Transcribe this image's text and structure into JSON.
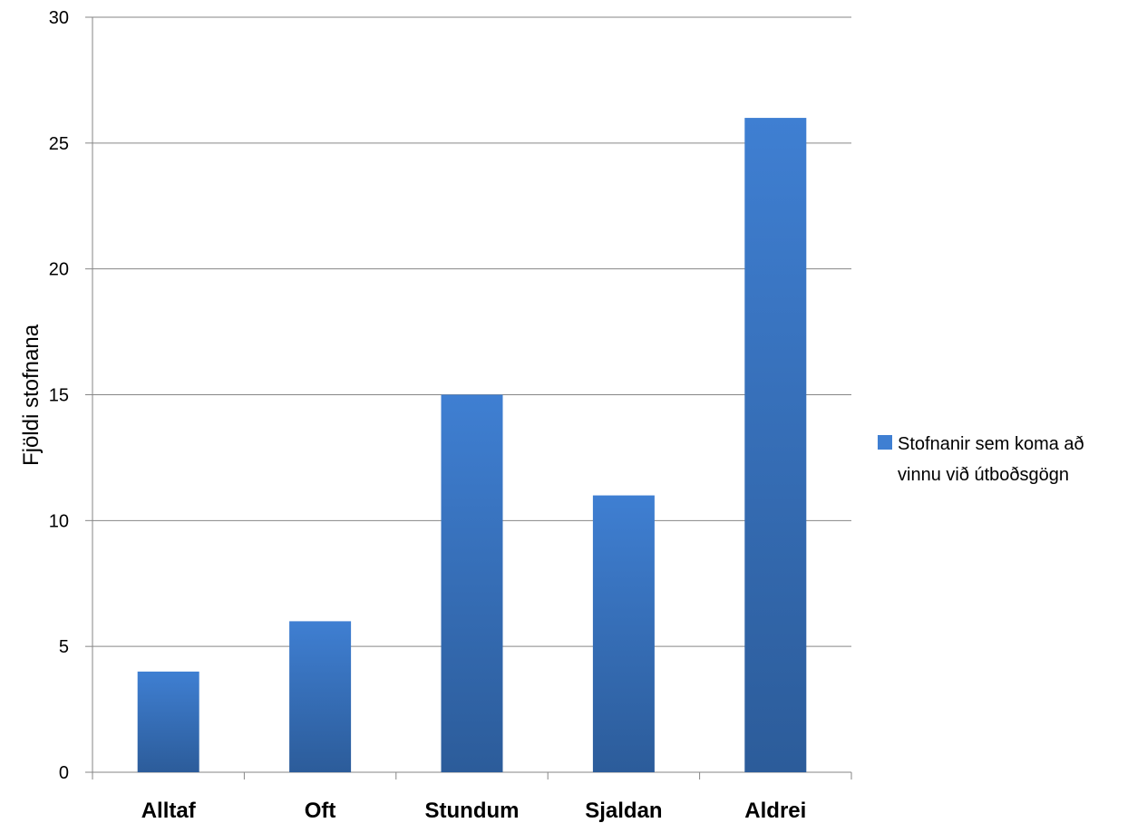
{
  "chart_data": {
    "type": "bar",
    "categories": [
      "Alltaf",
      "Oft",
      "Stundum",
      "Sjaldan",
      "Aldrei"
    ],
    "series": [
      {
        "name": "Stofnanir sem koma að vinnu við útboðsgögn",
        "values": [
          4,
          6,
          15,
          11,
          26
        ]
      }
    ],
    "xlabel": "",
    "ylabel": "Fjöldi stofnana",
    "ylim": [
      0,
      30
    ],
    "yticks": [
      0,
      5,
      10,
      15,
      20,
      25,
      30
    ],
    "grid": true,
    "legend_position": "right",
    "legend_lines": [
      "Stofnanir sem koma að",
      "vinnu við útboðsgögn"
    ],
    "colors": {
      "bar_top": "#3f7fd2",
      "bar_bottom": "#2c5c9a",
      "grid": "#868686",
      "axis": "#868686"
    }
  }
}
